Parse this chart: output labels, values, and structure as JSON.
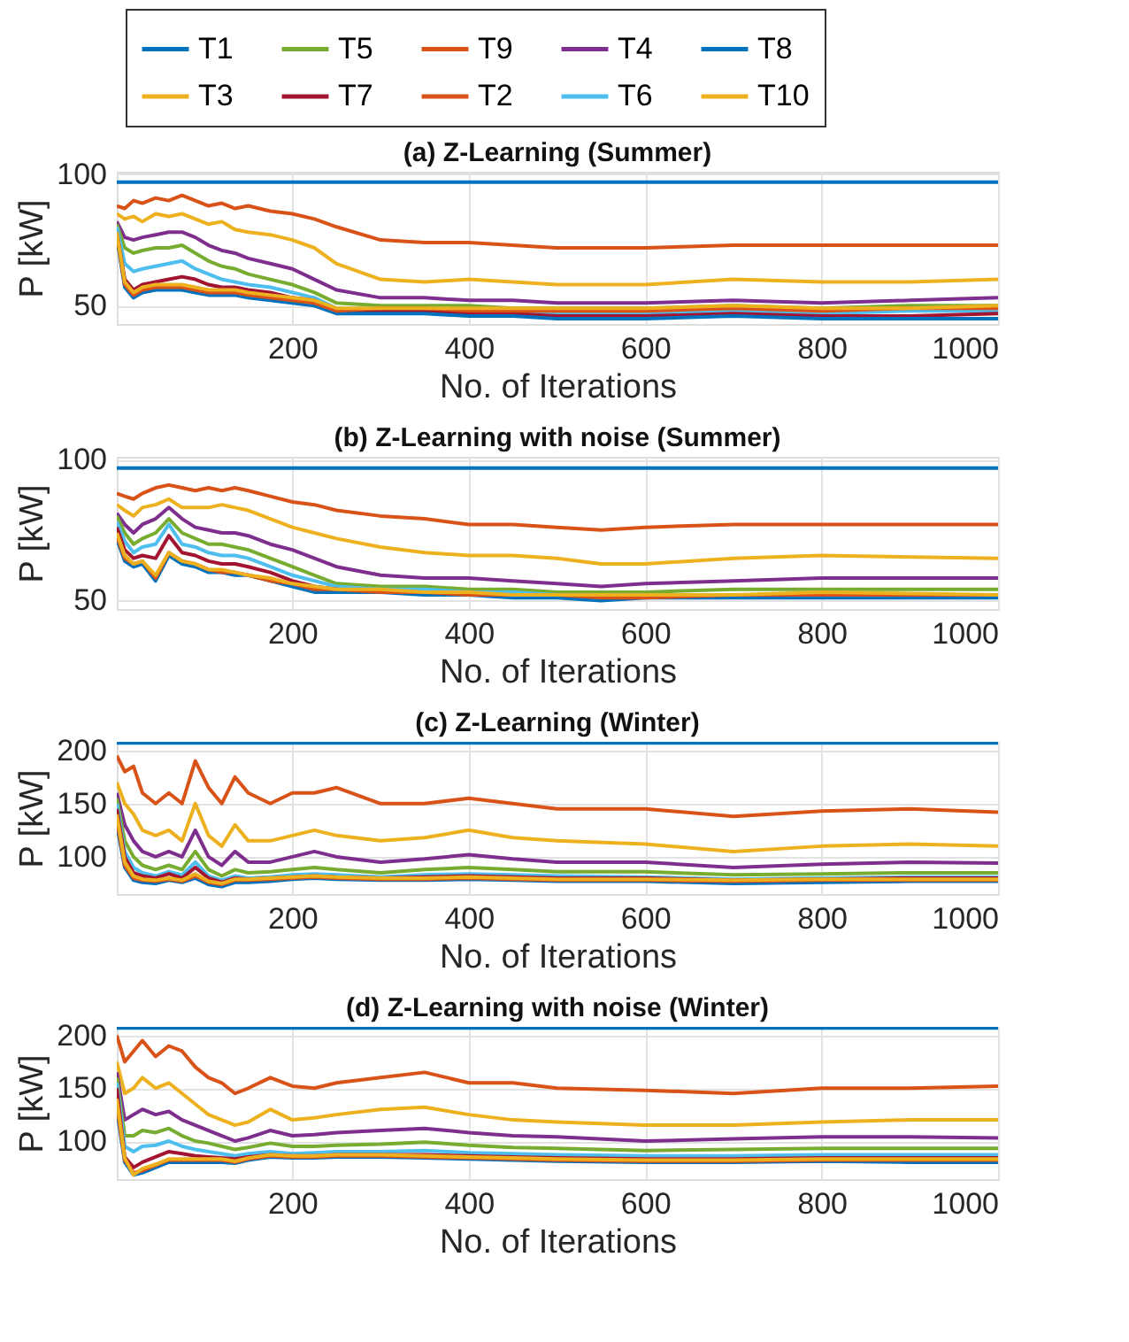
{
  "chart_data": [
    {
      "type": "line",
      "title": "(a) Z-Learning (Summer)",
      "xlabel": "No. of Iterations",
      "ylabel": "P [kW]",
      "xlim": [
        1,
        1000
      ],
      "ylim": [
        43,
        101
      ],
      "xticks": [
        200,
        400,
        600,
        800,
        1000
      ],
      "yticks": [
        50,
        100
      ],
      "grid": true,
      "legend": "top",
      "x": [
        1,
        10,
        20,
        30,
        45,
        60,
        75,
        90,
        105,
        120,
        135,
        150,
        175,
        200,
        225,
        250,
        300,
        350,
        400,
        450,
        500,
        600,
        700,
        800,
        900,
        1000
      ],
      "series": [
        {
          "name": "T1",
          "color": "#0072bd",
          "values": [
            97,
            97,
            97,
            97,
            97,
            97,
            97,
            97,
            97,
            97,
            97,
            97,
            97,
            97,
            97,
            97,
            97,
            97,
            97,
            97,
            97,
            97,
            97,
            97,
            97,
            97
          ]
        },
        {
          "name": "T2",
          "color": "#d95319",
          "values": [
            88,
            87,
            90,
            89,
            91,
            90,
            92,
            90,
            88,
            89,
            87,
            88,
            86,
            85,
            83,
            80,
            75,
            74,
            74,
            73,
            72,
            72,
            73,
            73,
            73,
            73
          ]
        },
        {
          "name": "T3",
          "color": "#edb120",
          "values": [
            85,
            83,
            84,
            82,
            85,
            84,
            85,
            83,
            81,
            82,
            79,
            78,
            77,
            75,
            72,
            66,
            60,
            59,
            60,
            59,
            58,
            58,
            60,
            59,
            59,
            60
          ]
        },
        {
          "name": "T4",
          "color": "#7e2f8e",
          "values": [
            82,
            76,
            75,
            76,
            77,
            78,
            78,
            76,
            73,
            71,
            70,
            68,
            66,
            64,
            60,
            56,
            53,
            53,
            52,
            52,
            51,
            51,
            52,
            51,
            52,
            53
          ]
        },
        {
          "name": "T5",
          "color": "#77ac30",
          "values": [
            81,
            72,
            70,
            71,
            72,
            72,
            73,
            70,
            67,
            65,
            64,
            62,
            60,
            58,
            55,
            51,
            50,
            50,
            50,
            49,
            49,
            49,
            50,
            49,
            50,
            50
          ]
        },
        {
          "name": "T6",
          "color": "#4dbeee",
          "values": [
            80,
            66,
            63,
            64,
            65,
            66,
            67,
            64,
            62,
            60,
            59,
            58,
            57,
            55,
            53,
            49,
            48,
            48,
            48,
            47,
            47,
            47,
            48,
            47,
            48,
            48
          ]
        },
        {
          "name": "T7",
          "color": "#a2142f",
          "values": [
            78,
            60,
            56,
            58,
            59,
            60,
            61,
            60,
            58,
            57,
            57,
            56,
            55,
            53,
            52,
            48,
            48,
            48,
            47,
            47,
            46,
            46,
            47,
            46,
            46,
            47
          ]
        },
        {
          "name": "T8",
          "color": "#0072bd",
          "values": [
            76,
            57,
            53,
            55,
            56,
            56,
            56,
            55,
            54,
            54,
            54,
            53,
            52,
            51,
            50,
            47,
            47,
            47,
            46,
            46,
            45,
            45,
            46,
            45,
            45,
            45
          ]
        },
        {
          "name": "T9",
          "color": "#d95319",
          "values": [
            77,
            58,
            54,
            56,
            57,
            57,
            57,
            56,
            55,
            55,
            55,
            54,
            53,
            52,
            51,
            48,
            49,
            49,
            48,
            48,
            48,
            48,
            49,
            48,
            49,
            49
          ]
        },
        {
          "name": "T10",
          "color": "#edb120",
          "values": [
            78,
            59,
            55,
            57,
            58,
            58,
            58,
            57,
            56,
            56,
            56,
            55,
            54,
            53,
            52,
            49,
            49,
            49,
            49,
            49,
            49,
            49,
            50,
            49,
            49,
            50
          ]
        }
      ]
    },
    {
      "type": "line",
      "title": "(b) Z-Learning with noise (Summer)",
      "xlabel": "No. of Iterations",
      "ylabel": "P [kW]",
      "xlim": [
        1,
        1000
      ],
      "ylim": [
        47,
        101
      ],
      "xticks": [
        200,
        400,
        600,
        800,
        1000
      ],
      "yticks": [
        50,
        100
      ],
      "grid": true,
      "x": [
        1,
        10,
        20,
        30,
        45,
        60,
        75,
        90,
        105,
        120,
        135,
        150,
        175,
        200,
        225,
        250,
        300,
        350,
        400,
        450,
        500,
        550,
        600,
        700,
        800,
        1000
      ],
      "series": [
        {
          "color": "#0072bd",
          "values": [
            97,
            97,
            97,
            97,
            97,
            97,
            97,
            97,
            97,
            97,
            97,
            97,
            97,
            97,
            97,
            97,
            97,
            97,
            97,
            97,
            97,
            97,
            97,
            97,
            97,
            97
          ]
        },
        {
          "color": "#d95319",
          "values": [
            88,
            87,
            86,
            88,
            90,
            91,
            90,
            89,
            90,
            89,
            90,
            89,
            87,
            85,
            84,
            82,
            80,
            79,
            77,
            77,
            76,
            75,
            76,
            77,
            77,
            77
          ]
        },
        {
          "color": "#edb120",
          "values": [
            84,
            82,
            80,
            83,
            84,
            86,
            83,
            83,
            83,
            84,
            83,
            82,
            79,
            76,
            74,
            72,
            69,
            67,
            66,
            66,
            65,
            63,
            63,
            65,
            66,
            65
          ]
        },
        {
          "color": "#7e2f8e",
          "values": [
            81,
            77,
            74,
            77,
            79,
            83,
            79,
            76,
            75,
            74,
            74,
            73,
            70,
            68,
            65,
            62,
            59,
            58,
            58,
            57,
            56,
            55,
            56,
            57,
            58,
            58
          ]
        },
        {
          "color": "#77ac30",
          "values": [
            80,
            74,
            70,
            72,
            74,
            79,
            74,
            72,
            70,
            70,
            69,
            68,
            65,
            62,
            59,
            56,
            55,
            55,
            54,
            54,
            53,
            53,
            53,
            54,
            54,
            54
          ]
        },
        {
          "color": "#4dbeee",
          "values": [
            78,
            71,
            67,
            69,
            70,
            77,
            70,
            69,
            67,
            66,
            66,
            65,
            62,
            59,
            57,
            55,
            54,
            54,
            53,
            53,
            52,
            52,
            52,
            52,
            null,
            null
          ]
        },
        {
          "color": "#a2142f",
          "values": [
            76,
            68,
            65,
            66,
            65,
            73,
            67,
            66,
            64,
            63,
            63,
            62,
            60,
            57,
            55,
            54,
            null,
            null,
            null,
            null,
            null,
            null,
            null,
            null,
            null,
            null
          ]
        },
        {
          "color": "#0072bd",
          "values": [
            72,
            64,
            62,
            63,
            57,
            66,
            63,
            62,
            60,
            60,
            59,
            59,
            57,
            55,
            53,
            53,
            53,
            52,
            52,
            51,
            51,
            50,
            51,
            51,
            51,
            51
          ]
        },
        {
          "color": "#d95319",
          "values": [
            73,
            65,
            63,
            64,
            58,
            67,
            64,
            63,
            61,
            60,
            60,
            59,
            57,
            56,
            54,
            54,
            53,
            53,
            52,
            52,
            52,
            51,
            51,
            52,
            52,
            52
          ]
        },
        {
          "color": "#edb120",
          "values": [
            74,
            66,
            63,
            64,
            59,
            67,
            64,
            63,
            61,
            61,
            60,
            59,
            58,
            56,
            55,
            54,
            54,
            53,
            53,
            52,
            52,
            52,
            52,
            52,
            53,
            52
          ]
        }
      ]
    },
    {
      "type": "line",
      "title": "(c) Z-Learning (Winter)",
      "xlabel": "No. of Iterations",
      "ylabel": "P [kW]",
      "xlim": [
        1,
        1000
      ],
      "ylim": [
        65,
        208
      ],
      "xticks": [
        200,
        400,
        600,
        800,
        1000
      ],
      "yticks": [
        100,
        150,
        200
      ],
      "grid": true,
      "x": [
        1,
        10,
        20,
        30,
        45,
        60,
        75,
        90,
        105,
        120,
        135,
        150,
        175,
        200,
        225,
        250,
        300,
        350,
        400,
        450,
        500,
        600,
        700,
        800,
        900,
        1000
      ],
      "series": [
        {
          "color": "#0072bd",
          "values": [
            207,
            207,
            207,
            207,
            207,
            207,
            207,
            207,
            207,
            207,
            207,
            207,
            207,
            207,
            207,
            207,
            207,
            207,
            207,
            207,
            207,
            207,
            207,
            207,
            207,
            207
          ]
        },
        {
          "color": "#d95319",
          "values": [
            195,
            180,
            185,
            160,
            150,
            160,
            150,
            190,
            165,
            150,
            175,
            160,
            150,
            160,
            160,
            165,
            150,
            150,
            155,
            150,
            145,
            145,
            138,
            143,
            145,
            142
          ]
        },
        {
          "color": "#edb120",
          "values": [
            170,
            150,
            140,
            125,
            120,
            125,
            115,
            150,
            120,
            110,
            130,
            115,
            115,
            120,
            125,
            120,
            115,
            118,
            125,
            118,
            115,
            112,
            105,
            110,
            112,
            110
          ]
        },
        {
          "color": "#7e2f8e",
          "values": [
            160,
            130,
            115,
            105,
            100,
            105,
            100,
            125,
            100,
            92,
            105,
            95,
            95,
            100,
            105,
            100,
            95,
            98,
            102,
            98,
            95,
            95,
            90,
            93,
            95,
            94
          ]
        },
        {
          "color": "#77ac30",
          "values": [
            155,
            115,
            100,
            92,
            88,
            92,
            88,
            105,
            88,
            82,
            88,
            85,
            86,
            88,
            90,
            88,
            85,
            88,
            90,
            88,
            86,
            86,
            83,
            84,
            85,
            85
          ]
        },
        {
          "color": "#4dbeee",
          "values": [
            150,
            105,
            90,
            85,
            82,
            86,
            83,
            95,
            82,
            78,
            82,
            80,
            81,
            83,
            84,
            83,
            81,
            83,
            84,
            83,
            82,
            81,
            79,
            80,
            81,
            81
          ]
        },
        {
          "color": "#a2142f",
          "values": [
            145,
            100,
            85,
            82,
            80,
            84,
            80,
            90,
            80,
            76,
            80,
            79,
            80,
            81,
            82,
            81,
            80,
            81,
            82,
            81,
            80,
            80,
            78,
            79,
            80,
            80
          ]
        },
        {
          "color": "#0072bd",
          "values": [
            130,
            90,
            78,
            76,
            75,
            78,
            76,
            80,
            74,
            72,
            76,
            76,
            77,
            79,
            80,
            79,
            78,
            78,
            79,
            78,
            77,
            77,
            75,
            76,
            77,
            77
          ]
        },
        {
          "color": "#d95319",
          "values": [
            135,
            92,
            80,
            78,
            77,
            79,
            77,
            82,
            76,
            74,
            78,
            78,
            79,
            80,
            81,
            80,
            79,
            79,
            80,
            79,
            78,
            78,
            77,
            78,
            78,
            78
          ]
        },
        {
          "color": "#edb120",
          "values": [
            140,
            95,
            82,
            79,
            78,
            80,
            78,
            84,
            77,
            75,
            79,
            79,
            80,
            81,
            82,
            81,
            80,
            80,
            81,
            80,
            79,
            79,
            78,
            79,
            79,
            79
          ]
        }
      ]
    },
    {
      "type": "line",
      "title": "(d) Z-Learning with noise (Winter)",
      "xlabel": "No. of Iterations",
      "ylabel": "P [kW]",
      "xlim": [
        1,
        1000
      ],
      "ylim": [
        64,
        208
      ],
      "xticks": [
        200,
        400,
        600,
        800,
        1000
      ],
      "yticks": [
        100,
        150,
        200
      ],
      "grid": true,
      "x": [
        1,
        10,
        20,
        30,
        45,
        60,
        75,
        90,
        105,
        120,
        135,
        150,
        175,
        200,
        225,
        250,
        300,
        350,
        400,
        450,
        500,
        600,
        700,
        800,
        900,
        1000
      ],
      "series": [
        {
          "color": "#0072bd",
          "values": [
            207,
            207,
            207,
            207,
            207,
            207,
            207,
            207,
            207,
            207,
            207,
            207,
            207,
            207,
            207,
            207,
            207,
            207,
            207,
            207,
            207,
            207,
            207,
            207,
            207,
            207
          ]
        },
        {
          "color": "#d95319",
          "values": [
            200,
            175,
            185,
            195,
            180,
            190,
            185,
            170,
            160,
            155,
            145,
            150,
            160,
            152,
            150,
            155,
            160,
            165,
            155,
            155,
            150,
            148,
            145,
            150,
            150,
            152
          ]
        },
        {
          "color": "#edb120",
          "values": [
            175,
            145,
            150,
            160,
            150,
            155,
            145,
            135,
            125,
            120,
            115,
            118,
            130,
            120,
            122,
            125,
            130,
            132,
            125,
            120,
            118,
            115,
            115,
            118,
            120,
            120
          ]
        },
        {
          "color": "#7e2f8e",
          "values": [
            165,
            120,
            125,
            130,
            125,
            128,
            120,
            115,
            110,
            105,
            100,
            103,
            110,
            105,
            106,
            108,
            110,
            112,
            108,
            105,
            104,
            100,
            102,
            104,
            104,
            103
          ]
        },
        {
          "color": "#77ac30",
          "values": [
            160,
            105,
            105,
            110,
            108,
            112,
            105,
            100,
            98,
            95,
            92,
            94,
            98,
            95,
            95,
            96,
            97,
            99,
            96,
            94,
            93,
            91,
            92,
            93,
            93,
            93
          ]
        },
        {
          "color": "#4dbeee",
          "values": [
            155,
            95,
            90,
            95,
            96,
            100,
            95,
            92,
            90,
            88,
            86,
            88,
            90,
            88,
            89,
            90,
            90,
            91,
            89,
            88,
            87,
            86,
            86,
            87,
            87,
            87
          ]
        },
        {
          "color": "#a2142f",
          "values": [
            150,
            85,
            75,
            80,
            85,
            90,
            88,
            86,
            85,
            84,
            83,
            85,
            87,
            86,
            86,
            87,
            87,
            87,
            86,
            85,
            84,
            83,
            83,
            84,
            84,
            84
          ]
        },
        {
          "color": "#0072bd",
          "values": [
            130,
            80,
            68,
            70,
            75,
            80,
            80,
            80,
            80,
            80,
            79,
            82,
            85,
            84,
            84,
            85,
            85,
            84,
            83,
            82,
            81,
            80,
            80,
            81,
            80,
            80
          ]
        },
        {
          "color": "#d95319",
          "values": [
            135,
            82,
            70,
            72,
            77,
            82,
            82,
            82,
            82,
            82,
            80,
            83,
            86,
            85,
            85,
            86,
            86,
            85,
            84,
            83,
            82,
            81,
            81,
            82,
            82,
            82
          ]
        },
        {
          "color": "#edb120",
          "values": [
            140,
            84,
            68,
            74,
            78,
            83,
            83,
            83,
            83,
            83,
            81,
            84,
            87,
            86,
            86,
            87,
            87,
            86,
            85,
            84,
            83,
            82,
            82,
            83,
            83,
            83
          ]
        }
      ]
    }
  ]
}
